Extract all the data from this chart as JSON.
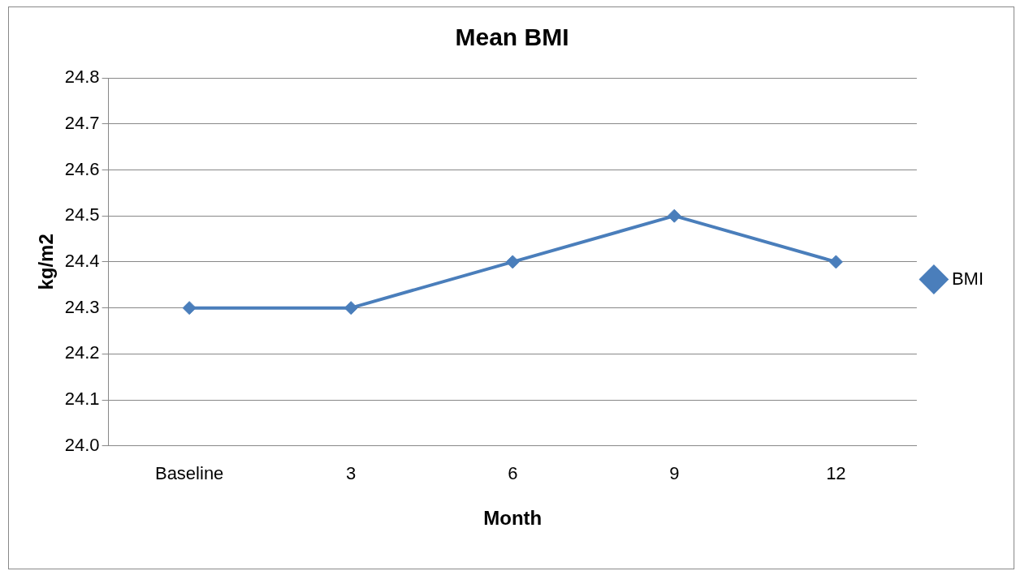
{
  "chart_data": {
    "type": "line",
    "title": "Mean BMI",
    "xlabel": "Month",
    "ylabel": "kg/m2",
    "categories": [
      "Baseline",
      "3",
      "6",
      "9",
      "12"
    ],
    "series": [
      {
        "name": "BMI",
        "color": "#4a7ebb",
        "values": [
          24.3,
          24.3,
          24.4,
          24.5,
          24.4
        ]
      }
    ],
    "ylim": [
      24.0,
      24.8
    ],
    "yticks": [
      {
        "value": 24.0,
        "label": "24.0"
      },
      24.1,
      24.2,
      24.3,
      24.4,
      24.5,
      24.6,
      24.7,
      24.8
    ],
    "grid": "y",
    "legend": "right",
    "marker": "diamond",
    "line_style": "solid"
  }
}
